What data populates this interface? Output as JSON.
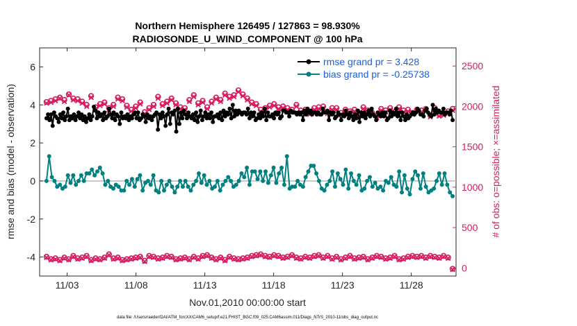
{
  "colors": {
    "rmse": "#000000",
    "bias": "#008080",
    "obs": "#d81b60",
    "zero_line": "#b8b8b8",
    "legend_text": "#1a5fe0"
  },
  "chart_data": {
    "type": "line",
    "title_line1": "Northern Hemisphere 126495 / 127863 = 98.930%",
    "title_line2": "RADIOSONDE_U_WIND_COMPONENT @ 100 hPa",
    "xlabel": "Nov.01,2010 00:00:00 start",
    "ylabel_left": "rmse and bias (model - observation)",
    "ylabel_right": "# of obs: o=possible; ×=assimilated",
    "footer": "data file: /Users/raeder/DAI/ATM_forcXX/CAM6_setup/f.e21.FHIST_BGC.f09_025.CAM6assim.011/Diags_NTrS_2010-11/obs_diag_output.nc",
    "xlim": [
      0.5,
      30.75
    ],
    "ylim_left": [
      -5,
      7
    ],
    "ylim_right": [
      -100,
      2725
    ],
    "xticks": [
      2.5,
      7.5,
      12.5,
      17.5,
      22.5,
      27.5
    ],
    "xticklabels": [
      "11/03",
      "11/08",
      "11/13",
      "11/18",
      "11/23",
      "11/28"
    ],
    "yticks_left": [
      -4,
      -2,
      0,
      2,
      4,
      6
    ],
    "yticks_right": [
      0,
      500,
      1000,
      1500,
      2000,
      2500
    ],
    "legend": {
      "position": "top-right",
      "entries": [
        "rmse grand pr = 3.428",
        "bias grand pr = -0.25738"
      ]
    },
    "series": [
      {
        "name": "rmse grand pr = 3.428",
        "axis": "left",
        "values": [
          3.3,
          3.5,
          3.2,
          3.5,
          2.9,
          3.6,
          3.4,
          3.3,
          3.1,
          3.5,
          3.3,
          3.6,
          3.2,
          3.4,
          3.8,
          3.2,
          3.4,
          3.3,
          3.5,
          3.2,
          3.4,
          3.6,
          3.3,
          3.5,
          3.2,
          3.4,
          3.1,
          3.3,
          3.5,
          3.2,
          3.4,
          3.9,
          3.7,
          3.3,
          3.6,
          3.4,
          3.5,
          3.2,
          3.6,
          3.3,
          3.4,
          3.8,
          3.5,
          3.3,
          3.6,
          3.2,
          3.5,
          3.4,
          3.0,
          3.6,
          3.3,
          3.4,
          3.3,
          3.5,
          3.2,
          3.4,
          3.3,
          3.5,
          3.6,
          3.3,
          3.6,
          3.2,
          3.3,
          3.5,
          3.4,
          3.1,
          3.5,
          3.3,
          3.4,
          3.2,
          3.4,
          3.5,
          3.6,
          2.7,
          3.5,
          3.3,
          3.6,
          3.4,
          2.9,
          3.5,
          3.8,
          3.0,
          3.6,
          3.5,
          3.7,
          2.6,
          3.8,
          3.0,
          3.6,
          3.3,
          3.7,
          3.5,
          3.3,
          3.6,
          3.4,
          3.3,
          3.5,
          3.2,
          3.6,
          3.1,
          3.4,
          3.7,
          3.2,
          3.4,
          3.6,
          3.3,
          3.5,
          3.3,
          3.6,
          3.1,
          3.4,
          3.4,
          3.5,
          3.3,
          3.6,
          3.2,
          3.7,
          3.4,
          3.6,
          3.5,
          3.8,
          3.3,
          4.0,
          3.4,
          3.7,
          3.5,
          3.7,
          3.6,
          3.5,
          3.6,
          3.6,
          3.5,
          3.8,
          3.3,
          3.6,
          3.4,
          3.6,
          3.2,
          3.3,
          3.5,
          3.3,
          3.6,
          3.4,
          3.8,
          3.2,
          3.6,
          3.4,
          3.4,
          3.5,
          3.3,
          3.6,
          3.5,
          3.6,
          3.3,
          3.4,
          3.7,
          3.7,
          3.6,
          3.6,
          3.4,
          3.7,
          3.6,
          3.6,
          3.6,
          3.5,
          3.6,
          3.5,
          3.6,
          3.2,
          3.7,
          3.5,
          3.8,
          3.6,
          3.7,
          3.5,
          3.6,
          3.6,
          3.5,
          3.6,
          3.5,
          3.5,
          3.8,
          3.6,
          3.6,
          3.7,
          3.2,
          3.6,
          3.5,
          3.6,
          3.3,
          3.4,
          3.6,
          3.5,
          3.2,
          3.5,
          3.4,
          3.7,
          3.5,
          3.3,
          3.6,
          3.4,
          3.2,
          3.5,
          3.3,
          3.7,
          3.1,
          3.6,
          3.4,
          3.6,
          3.3,
          3.5,
          3.7,
          3.4,
          3.8,
          3.5,
          3.4,
          3.2,
          3.6,
          3.5,
          3.4,
          3.6,
          3.4,
          3.6,
          3.2,
          3.3,
          3.7,
          3.4,
          3.6,
          3.5,
          3.8,
          3.4,
          3.6,
          3.2,
          3.6,
          3.4,
          3.2,
          3.5,
          3.3,
          3.4,
          3.5,
          3.6,
          3.5,
          3.6,
          3.8,
          3.7,
          3.5,
          3.5,
          3.4,
          3.7,
          3.8,
          3.6,
          3.5,
          3.4,
          4.0,
          3.5,
          3.8,
          3.6,
          3.7,
          3.6,
          3.6,
          3.8,
          3.5,
          3.6,
          3.6,
          3.5,
          3.7,
          3.2
        ]
      },
      {
        "name": "bias grand pr = -0.25738",
        "axis": "left",
        "values": [
          0.0,
          1.3,
          0.2,
          0.0,
          -0.3,
          -0.2,
          -0.4,
          -0.3,
          0.3,
          -0.1,
          0.3,
          -0.2,
          0.0,
          0.3,
          0.0,
          0.4,
          0.4,
          0.6,
          0.3,
          0.5,
          0.7,
          0.4,
          -0.2,
          0.0,
          -0.3,
          -0.4,
          -0.2,
          -0.3,
          -0.5,
          -0.5,
          0.0,
          -0.2,
          0.1,
          -0.3,
          0.1,
          0.3,
          -0.5,
          -0.1,
          0.0,
          -0.2,
          0.3,
          -0.5,
          -0.6,
          0.0,
          -0.5,
          -0.2,
          0.0,
          -0.3,
          -0.6,
          -0.3,
          0.0,
          -0.3,
          0.0,
          -0.3,
          -0.5,
          -0.2,
          0.0,
          0.4,
          -0.1,
          0.3,
          -0.2,
          0.0,
          -0.4,
          -0.3,
          0.0,
          -0.5,
          -0.2,
          0.0,
          0.2,
          0.0,
          -0.3,
          -0.2,
          0.0,
          0.4,
          0.2,
          0.7,
          -0.2,
          0.5,
          0.5,
          0.1,
          0.5,
          0.0,
          0.5,
          -0.1,
          0.3,
          0.7,
          -0.1,
          0.4,
          0.7,
          -0.2,
          1.3,
          -0.4,
          -0.3,
          -0.3,
          0.0,
          -0.2,
          -0.3,
          0.2,
          0.5,
          0.8,
          0.8,
          0.4,
          0.0,
          -0.4,
          -0.5,
          -0.2,
          0.0,
          0.5,
          -0.3,
          0.4,
          0.1,
          -0.2,
          0.6,
          -0.4,
          0.4,
          0.0,
          -0.2,
          0.3,
          -0.5,
          -0.4,
          0.0,
          0.2,
          -0.3,
          -0.1,
          -0.4,
          -0.3,
          -0.5,
          0.0,
          -0.1,
          0.2,
          -0.2,
          -0.3,
          0.5,
          -0.6,
          0.3,
          -0.4,
          -0.7,
          0.1,
          0.5,
          0.3,
          -0.4,
          0.4,
          -0.3,
          -0.6,
          -0.5,
          -0.4,
          0.0,
          0.4,
          -0.2,
          0.4,
          -0.2,
          -0.6,
          -0.8
        ]
      },
      {
        "name": "possible",
        "axis": "right",
        "values": [
          2055,
          2070,
          2090,
          2110,
          2080,
          2150,
          2100,
          2090,
          2060,
          2020,
          2130,
          1990,
          2030,
          2050,
          1980,
          2020,
          2110,
          2090,
          2010,
          1960,
          2000,
          2050,
          1930,
          1980,
          2020,
          2120,
          2030,
          2060,
          2100,
          2040,
          1990,
          1980,
          2080,
          2140,
          2040,
          2070,
          1990,
          2060,
          2110,
          2080,
          2160,
          2120,
          2140,
          2200,
          2150,
          2100,
          2050,
          2030,
          1960,
          1980,
          2010,
          2030,
          1990,
          2000,
          1980,
          1960,
          2020,
          1950,
          1960,
          1920,
          1980,
          1990,
          2000,
          1930,
          1980,
          1980,
          1920,
          1960,
          1940,
          1960,
          1900,
          1990,
          1950,
          1920,
          1880,
          1970,
          1950,
          1980,
          1930,
          1990,
          1950,
          1960,
          1920,
          1960,
          1950,
          1970,
          1890,
          1980,
          1900,
          1910,
          1940,
          1970
        ]
      },
      {
        "name": "assimilated",
        "axis": "right",
        "values": [
          2040,
          2050,
          2070,
          2100,
          2060,
          2140,
          2080,
          2070,
          2040,
          2000,
          2110,
          1970,
          2010,
          2030,
          1960,
          2000,
          2090,
          2070,
          1990,
          1940,
          1980,
          2030,
          1910,
          1960,
          2000,
          2100,
          2010,
          2040,
          2080,
          2020,
          1970,
          1960,
          2060,
          2120,
          2020,
          2050,
          1970,
          2040,
          2090,
          2060,
          2140,
          2100,
          2120,
          2180,
          2130,
          2080,
          2030,
          2010,
          1940,
          1960,
          1990,
          2010,
          1970,
          1980,
          1960,
          1940,
          2000,
          1930,
          1940,
          1900,
          1960,
          1970,
          1980,
          1910,
          1960,
          1960,
          1900,
          1940,
          1920,
          1940,
          1880,
          1970,
          1930,
          1900,
          1860,
          1950,
          1930,
          1960,
          1910,
          1970,
          1930,
          1940,
          1900,
          1940,
          1930,
          1950,
          1870,
          1960,
          1880,
          1890,
          1920,
          1950
        ]
      },
      {
        "name": "possible (lower)",
        "axis": "right",
        "values": [
          140,
          110,
          120,
          100,
          130,
          110,
          150,
          120,
          130,
          150,
          100,
          120,
          110,
          130,
          170,
          120,
          130,
          100,
          110,
          120,
          130,
          140,
          90,
          150,
          140,
          120,
          130,
          150,
          140,
          110,
          120,
          130,
          110,
          140,
          120,
          150,
          160,
          130,
          110,
          130,
          100,
          140,
          120,
          110,
          120,
          130,
          150,
          160,
          170,
          150,
          140,
          160,
          150,
          130,
          140,
          160,
          130,
          120,
          140,
          130,
          150,
          160,
          130,
          150,
          120,
          140,
          110,
          130,
          150,
          120,
          130,
          140,
          110,
          130,
          150,
          140,
          120,
          130,
          150,
          110,
          120,
          140,
          150,
          140,
          150,
          130,
          150,
          140,
          130,
          150,
          130,
          -10
        ]
      },
      {
        "name": "assimilated (lower)",
        "axis": "right",
        "values": [
          130,
          100,
          110,
          90,
          120,
          100,
          140,
          110,
          120,
          140,
          90,
          110,
          100,
          120,
          160,
          110,
          120,
          90,
          100,
          110,
          120,
          130,
          80,
          140,
          130,
          110,
          120,
          140,
          130,
          100,
          110,
          120,
          100,
          130,
          110,
          140,
          150,
          120,
          100,
          120,
          90,
          130,
          110,
          100,
          110,
          120,
          140,
          150,
          160,
          140,
          130,
          150,
          140,
          120,
          130,
          150,
          120,
          110,
          130,
          120,
          140,
          150,
          120,
          140,
          110,
          130,
          100,
          120,
          140,
          110,
          120,
          130,
          100,
          120,
          140,
          130,
          110,
          120,
          140,
          100,
          110,
          130,
          140,
          130,
          140,
          120,
          140,
          130,
          120,
          140,
          120,
          -20
        ]
      }
    ]
  }
}
